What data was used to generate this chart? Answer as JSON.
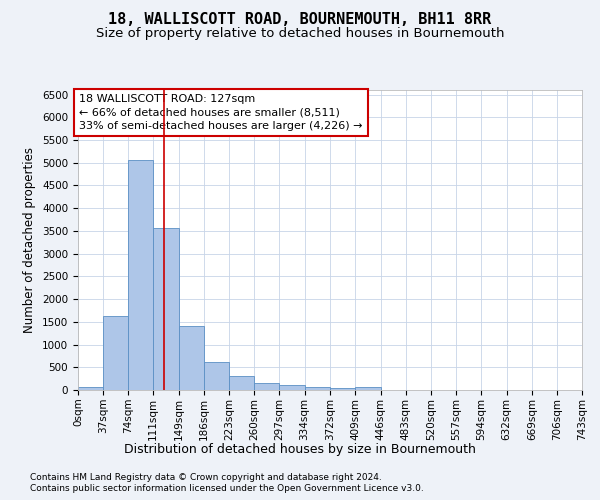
{
  "title": "18, WALLISCOTT ROAD, BOURNEMOUTH, BH11 8RR",
  "subtitle": "Size of property relative to detached houses in Bournemouth",
  "xlabel": "Distribution of detached houses by size in Bournemouth",
  "ylabel": "Number of detached properties",
  "footnote1": "Contains HM Land Registry data © Crown copyright and database right 2024.",
  "footnote2": "Contains public sector information licensed under the Open Government Licence v3.0.",
  "bar_color": "#aec6e8",
  "bar_edge_color": "#5a8fc4",
  "annotation_line1": "18 WALLISCOTT ROAD: 127sqm",
  "annotation_line2": "← 66% of detached houses are smaller (8,511)",
  "annotation_line3": "33% of semi-detached houses are larger (4,226) →",
  "annotation_box_color": "#ffffff",
  "annotation_box_edge_color": "#cc0000",
  "vline_x": 127,
  "vline_color": "#cc0000",
  "bin_edges": [
    0,
    37,
    74,
    111,
    149,
    186,
    223,
    260,
    297,
    334,
    372,
    409,
    446,
    483,
    520,
    557,
    594,
    632,
    669,
    706,
    743
  ],
  "bar_heights": [
    75,
    1630,
    5060,
    3570,
    1410,
    620,
    300,
    145,
    105,
    75,
    55,
    70,
    0,
    0,
    0,
    0,
    0,
    0,
    0,
    0
  ],
  "ylim": [
    0,
    6600
  ],
  "yticks": [
    0,
    500,
    1000,
    1500,
    2000,
    2500,
    3000,
    3500,
    4000,
    4500,
    5000,
    5500,
    6000,
    6500
  ],
  "background_color": "#eef2f8",
  "plot_background_color": "#ffffff",
  "grid_color": "#c8d4e8",
  "title_fontsize": 11,
  "subtitle_fontsize": 9.5,
  "xlabel_fontsize": 9,
  "ylabel_fontsize": 8.5,
  "tick_fontsize": 7.5,
  "annotation_fontsize": 8,
  "footnote_fontsize": 6.5
}
